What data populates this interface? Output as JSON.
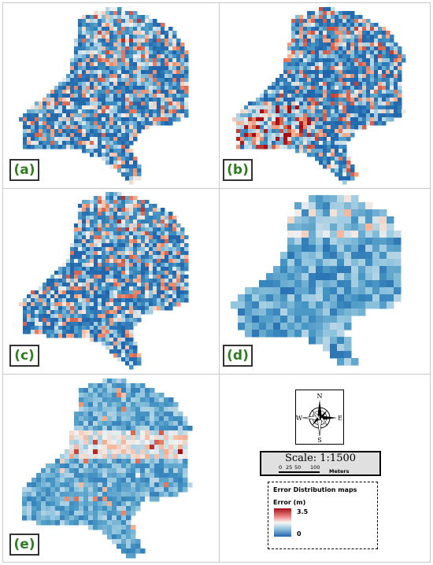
{
  "panels": [
    {
      "label": "(a)",
      "scheme": "mixed"
    },
    {
      "label": "(b)",
      "scheme": "red-southwest"
    },
    {
      "label": "(c)",
      "scheme": "mixed"
    },
    {
      "label": "(d)",
      "scheme": "blocky-light"
    },
    {
      "label": "(e)",
      "scheme": "smooth-light"
    }
  ],
  "compass": {
    "north": "N",
    "south": "S",
    "east": "E",
    "west": "W"
  },
  "scale": {
    "title": "Scale: 1:1500",
    "ticks": [
      "0",
      "25",
      "50",
      "100"
    ],
    "unit": "Meters"
  },
  "legend": {
    "title": "Error Distribution maps",
    "heading": "Error (m)",
    "max_label": "3.5",
    "min_label": "0",
    "colors": {
      "high": "#a50f15",
      "mid": "#f7f7f7",
      "low": "#2166ac"
    }
  }
}
